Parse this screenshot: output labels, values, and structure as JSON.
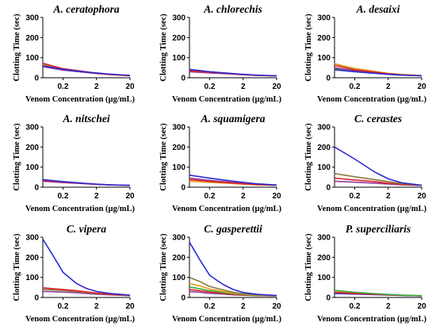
{
  "chart_data": [
    {
      "type": "line",
      "title": "A. ceratophora",
      "xlabel": "Venom Concentration (µg/mL)",
      "ylabel": "Clotting Time (sec)",
      "x_scale": "log",
      "x_ticks": [
        "0.2",
        "2",
        "20"
      ],
      "y_ticks": [
        "0",
        "100",
        "200",
        "300"
      ],
      "ylim": [
        0,
        300
      ],
      "x": [
        0.05,
        0.2,
        0.8,
        2,
        5,
        20
      ],
      "series": [
        {
          "color": "#2b2bd1",
          "values": [
            60,
            42,
            30,
            24,
            18,
            12
          ]
        },
        {
          "color": "#e0222a",
          "values": [
            72,
            45,
            32,
            22,
            16,
            10
          ]
        },
        {
          "color": "#8f3a9a",
          "values": [
            55,
            38,
            28,
            21,
            16,
            11
          ]
        },
        {
          "color": "#d9a21c",
          "values": [
            68,
            44,
            30,
            22,
            16,
            10
          ]
        }
      ]
    },
    {
      "type": "line",
      "title": "A. chlorechis",
      "xlabel": "Venom Concentration (µg/mL)",
      "ylabel": "Clotting Time (sec)",
      "x_scale": "log",
      "x_ticks": [
        "0.2",
        "2",
        "20"
      ],
      "y_ticks": [
        "0",
        "100",
        "200",
        "300"
      ],
      "ylim": [
        0,
        300
      ],
      "x": [
        0.05,
        0.2,
        0.8,
        2,
        5,
        20
      ],
      "series": [
        {
          "color": "#2b2bd1",
          "values": [
            42,
            30,
            22,
            17,
            13,
            10
          ]
        },
        {
          "color": "#e0222a",
          "values": [
            35,
            27,
            20,
            15,
            12,
            9
          ]
        },
        {
          "color": "#8f3a9a",
          "values": [
            30,
            24,
            19,
            15,
            12,
            9
          ]
        },
        {
          "color": "#d9a21c",
          "values": [
            38,
            28,
            21,
            16,
            12,
            9
          ]
        }
      ]
    },
    {
      "type": "line",
      "title": "A. desaixi",
      "xlabel": "Venom Concentration (µg/mL)",
      "ylabel": "Clotting Time (sec)",
      "x_scale": "log",
      "x_ticks": [
        "0.2",
        "2",
        "20"
      ],
      "y_ticks": [
        "0",
        "100",
        "200",
        "300"
      ],
      "ylim": [
        0,
        300
      ],
      "x": [
        0.05,
        0.2,
        0.8,
        2,
        5,
        20
      ],
      "series": [
        {
          "color": "#2b2bd1",
          "values": [
            40,
            30,
            22,
            17,
            13,
            10
          ]
        },
        {
          "color": "#e0222a",
          "values": [
            62,
            40,
            28,
            20,
            15,
            10
          ]
        },
        {
          "color": "#8f3a9a",
          "values": [
            50,
            35,
            25,
            18,
            14,
            10
          ]
        },
        {
          "color": "#d9a21c",
          "values": [
            70,
            46,
            31,
            22,
            16,
            11
          ]
        },
        {
          "color": "#3caa3c",
          "values": [
            45,
            32,
            23,
            17,
            13,
            10
          ]
        }
      ]
    },
    {
      "type": "line",
      "title": "A. nitschei",
      "xlabel": "Venom Concentration (µg/mL)",
      "ylabel": "Clotting Time (sec)",
      "x_scale": "log",
      "x_ticks": [
        "0.2",
        "2",
        "20"
      ],
      "y_ticks": [
        "0",
        "100",
        "200",
        "300"
      ],
      "ylim": [
        0,
        300
      ],
      "x": [
        0.05,
        0.2,
        0.8,
        2,
        5,
        20
      ],
      "series": [
        {
          "color": "#2b2bd1",
          "values": [
            38,
            28,
            20,
            15,
            12,
            9
          ]
        },
        {
          "color": "#e0222a",
          "values": [
            34,
            26,
            19,
            15,
            12,
            9
          ]
        },
        {
          "color": "#8f3a9a",
          "values": [
            30,
            23,
            18,
            14,
            11,
            9
          ]
        }
      ]
    },
    {
      "type": "line",
      "title": "A. squamigera",
      "xlabel": "Venom Concentration (µg/mL)",
      "ylabel": "Clotting Time (sec)",
      "x_scale": "log",
      "x_ticks": [
        "0.2",
        "2",
        "20"
      ],
      "y_ticks": [
        "0",
        "100",
        "200",
        "300"
      ],
      "ylim": [
        0,
        300
      ],
      "x": [
        0.05,
        0.2,
        0.8,
        2,
        5,
        20
      ],
      "series": [
        {
          "color": "#2b2bd1",
          "values": [
            60,
            45,
            32,
            24,
            17,
            11
          ]
        },
        {
          "color": "#e0222a",
          "values": [
            38,
            29,
            22,
            17,
            13,
            10
          ]
        },
        {
          "color": "#8f3a9a",
          "values": [
            45,
            34,
            25,
            19,
            14,
            10
          ]
        },
        {
          "color": "#d9a21c",
          "values": [
            30,
            24,
            19,
            15,
            12,
            9
          ]
        }
      ]
    },
    {
      "type": "line",
      "title": "C. cerastes",
      "xlabel": "Venom Concentration (µg/mL)",
      "ylabel": "Clotting Time (sec)",
      "x_scale": "log",
      "x_ticks": [
        "0.2",
        "2",
        "20"
      ],
      "y_ticks": [
        "0",
        "100",
        "200",
        "300"
      ],
      "ylim": [
        0,
        300
      ],
      "x": [
        0.05,
        0.2,
        0.8,
        2,
        5,
        20
      ],
      "series": [
        {
          "color": "#2b2bd1",
          "values": [
            200,
            140,
            75,
            42,
            22,
            10
          ]
        },
        {
          "color": "#8b7a3a",
          "values": [
            68,
            52,
            38,
            28,
            18,
            10
          ]
        },
        {
          "color": "#e0222a",
          "values": [
            45,
            36,
            28,
            20,
            14,
            9
          ]
        },
        {
          "color": "#8f3a9a",
          "values": [
            30,
            25,
            20,
            16,
            12,
            9
          ]
        }
      ]
    },
    {
      "type": "line",
      "title": "C. vipera",
      "xlabel": "Venom Concentration (µg/mL)",
      "ylabel": "Clotting Time (sec)",
      "x_scale": "log",
      "x_ticks": [
        "0.2",
        "2",
        "20"
      ],
      "y_ticks": [
        "0",
        "100",
        "200",
        "300"
      ],
      "ylim": [
        0,
        300
      ],
      "x": [
        0.05,
        0.1,
        0.2,
        0.5,
        1,
        2,
        5,
        20
      ],
      "series": [
        {
          "color": "#2b2bd1",
          "values": [
            290,
            210,
            125,
            70,
            45,
            30,
            20,
            12
          ]
        },
        {
          "color": "#e0222a",
          "values": [
            48,
            44,
            40,
            34,
            28,
            22,
            16,
            11
          ]
        },
        {
          "color": "#8b7a3a",
          "values": [
            40,
            38,
            35,
            30,
            25,
            20,
            15,
            10
          ]
        },
        {
          "color": "#8f3a9a",
          "values": [
            30,
            29,
            27,
            24,
            20,
            16,
            13,
            9
          ]
        }
      ]
    },
    {
      "type": "line",
      "title": "C. gasperettii",
      "xlabel": "Venom Concentration (µg/mL)",
      "ylabel": "Clotting Time (sec)",
      "x_scale": "log",
      "x_ticks": [
        "0.2",
        "2",
        "20"
      ],
      "y_ticks": [
        "0",
        "100",
        "200",
        "300"
      ],
      "ylim": [
        0,
        300
      ],
      "x": [
        0.05,
        0.1,
        0.2,
        0.5,
        1,
        2,
        5,
        20
      ],
      "series": [
        {
          "color": "#2b2bd1",
          "values": [
            275,
            190,
            110,
            65,
            40,
            25,
            16,
            10
          ]
        },
        {
          "color": "#8b7a3a",
          "values": [
            100,
            80,
            55,
            38,
            26,
            18,
            13,
            9
          ]
        },
        {
          "color": "#d9a21c",
          "values": [
            70,
            58,
            42,
            30,
            22,
            16,
            12,
            9
          ]
        },
        {
          "color": "#3caa3c",
          "values": [
            52,
            44,
            33,
            25,
            19,
            14,
            11,
            8
          ]
        },
        {
          "color": "#e0222a",
          "values": [
            40,
            34,
            27,
            21,
            16,
            12,
            10,
            8
          ]
        },
        {
          "color": "#8f3a9a",
          "values": [
            30,
            26,
            21,
            17,
            13,
            11,
            9,
            7
          ]
        }
      ]
    },
    {
      "type": "line",
      "title": "P. superciliaris",
      "xlabel": "Venom Concentration (µg/mL)",
      "ylabel": "Clotting Time (sec)",
      "x_scale": "log",
      "x_ticks": [
        "0.2",
        "2",
        "20"
      ],
      "y_ticks": [
        "0",
        "100",
        "200",
        "300"
      ],
      "ylim": [
        0,
        300
      ],
      "x": [
        0.05,
        0.2,
        0.8,
        2,
        5,
        20
      ],
      "series": [
        {
          "color": "#3caa3c",
          "values": [
            35,
            26,
            19,
            15,
            12,
            9
          ]
        },
        {
          "color": "#e0222a",
          "values": [
            25,
            20,
            16,
            13,
            11,
            8
          ]
        },
        {
          "color": "#2b2bd1",
          "values": [
            20,
            17,
            14,
            12,
            10,
            8
          ]
        },
        {
          "color": "#d9a21c",
          "values": [
            28,
            22,
            17,
            14,
            11,
            8
          ]
        }
      ]
    }
  ]
}
